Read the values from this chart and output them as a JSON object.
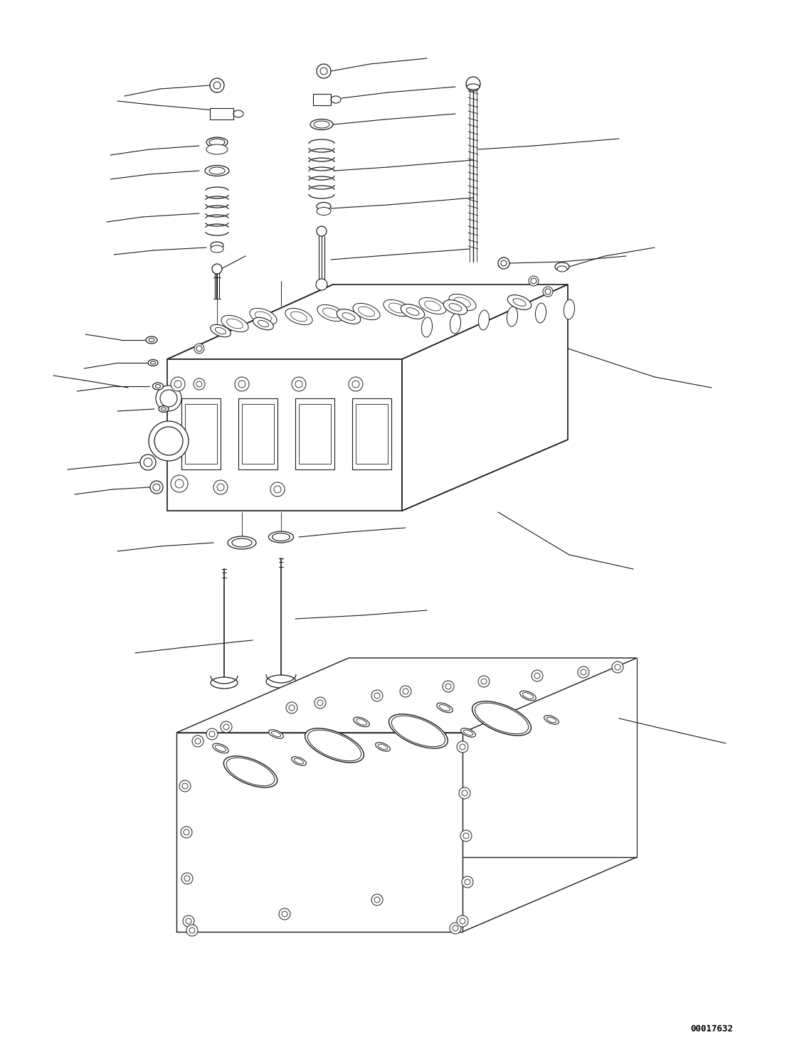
{
  "bg_color": "#ffffff",
  "line_color": "#1a1a1a",
  "fig_width": 11.37,
  "fig_height": 14.86,
  "dpi": 100,
  "watermark": "00017632",
  "watermark_fontsize": 9
}
